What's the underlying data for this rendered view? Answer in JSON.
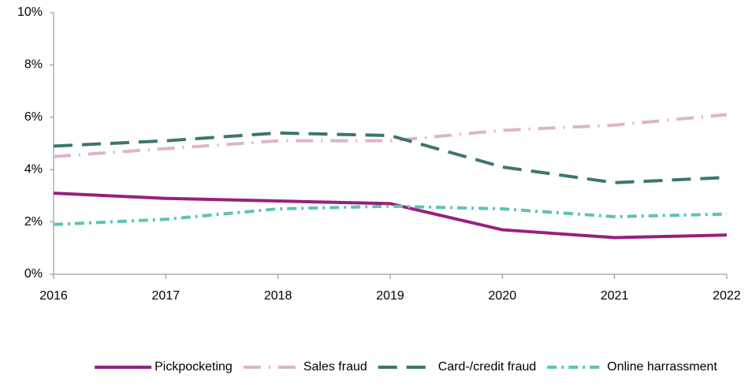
{
  "chart_data": {
    "type": "line",
    "categories": [
      "2016",
      "2017",
      "2018",
      "2019",
      "2020",
      "2021",
      "2022"
    ],
    "series": [
      {
        "name": "Pickpocketing",
        "color": "#97207e",
        "line_style": "solid",
        "values": [
          3.1,
          2.9,
          2.8,
          2.7,
          1.7,
          1.4,
          1.5
        ]
      },
      {
        "name": "Sales fraud",
        "color": "#dcb4c8",
        "line_style": "dash-dot",
        "values": [
          4.5,
          4.8,
          5.1,
          5.1,
          5.5,
          5.7,
          6.1
        ]
      },
      {
        "name": "Card-/credit fraud",
        "color": "#3d7570",
        "line_style": "long-dash",
        "values": [
          4.9,
          5.1,
          5.4,
          5.3,
          4.1,
          3.5,
          3.7
        ]
      },
      {
        "name": "Online harrassment",
        "color": "#5cc3b8",
        "line_style": "dash-dot-short",
        "values": [
          1.9,
          2.1,
          2.5,
          2.6,
          2.5,
          2.2,
          2.3
        ]
      }
    ],
    "ylim": [
      0,
      10
    ],
    "yticks": [
      {
        "value": 0,
        "label": "0%"
      },
      {
        "value": 2,
        "label": "2%"
      },
      {
        "value": 4,
        "label": "4%"
      },
      {
        "value": 6,
        "label": "6%"
      },
      {
        "value": 8,
        "label": "8%"
      },
      {
        "value": 10,
        "label": "10%"
      }
    ],
    "grid": false,
    "legend": "bottom"
  }
}
